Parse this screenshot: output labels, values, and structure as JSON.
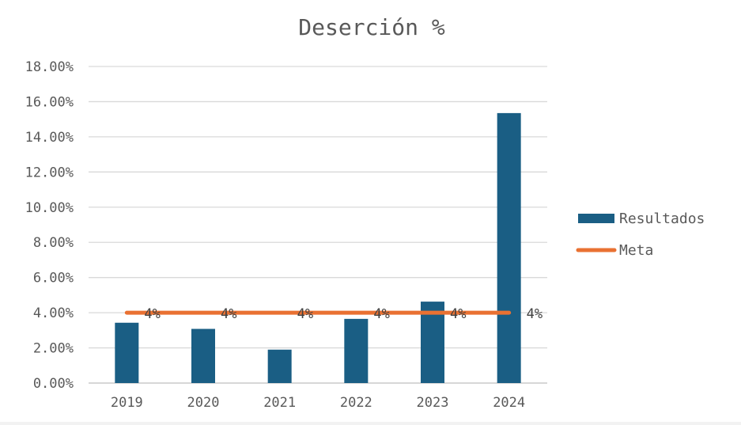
{
  "chart_data": {
    "type": "bar",
    "title": "Deserción %",
    "categories": [
      "2019",
      "2020",
      "2021",
      "2022",
      "2023",
      "2024"
    ],
    "series": [
      {
        "name": "Resultados",
        "type": "bar",
        "color": "#1a5e84",
        "values": [
          3.43,
          3.08,
          1.9,
          3.65,
          4.63,
          15.35
        ]
      },
      {
        "name": "Meta",
        "type": "line",
        "color": "#e97132",
        "values": [
          4,
          4,
          4,
          4,
          4,
          4
        ],
        "data_labels": [
          "4%",
          "4%",
          "4%",
          "4%",
          "4%",
          "4%"
        ]
      }
    ],
    "ylim": [
      0,
      18
    ],
    "yticks": [
      0,
      2,
      4,
      6,
      8,
      10,
      12,
      14,
      16,
      18
    ],
    "ytick_labels": [
      "0.00%",
      "2.00%",
      "4.00%",
      "6.00%",
      "8.00%",
      "10.00%",
      "12.00%",
      "14.00%",
      "16.00%",
      "18.00%"
    ],
    "xlabel": "",
    "ylabel": "",
    "grid": true,
    "legend_position": "right"
  }
}
